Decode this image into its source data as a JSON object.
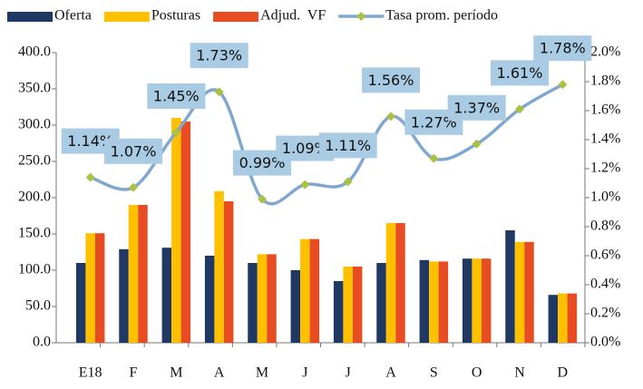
{
  "chart_data": {
    "type": "bar",
    "categories": [
      "E18",
      "F",
      "M",
      "A",
      "M",
      "J",
      "J",
      "A",
      "S",
      "O",
      "N",
      "D"
    ],
    "series": [
      {
        "name": "Oferta",
        "color": "#1f3864",
        "values": [
          110,
          129,
          131,
          120,
          110,
          100,
          85,
          110,
          114,
          116,
          155,
          66
        ]
      },
      {
        "name": "Posturas",
        "color": "#ffc000",
        "values": [
          151,
          190,
          310,
          209,
          122,
          143,
          105,
          165,
          112,
          116,
          139,
          68
        ]
      },
      {
        "name": "Adjud.  VF",
        "color": "#e84c22",
        "values": [
          151,
          190,
          305,
          195,
          122,
          143,
          105,
          165,
          112,
          116,
          139,
          68
        ]
      },
      {
        "name": "Tasa prom. período",
        "color": "#7fa7d0",
        "marker_color": "#a9c23f",
        "type": "line",
        "axis": "y2",
        "values": [
          1.14,
          1.07,
          1.45,
          1.73,
          0.99,
          1.09,
          1.11,
          1.56,
          1.27,
          1.37,
          1.61,
          1.78
        ],
        "value_labels": [
          "1.14%",
          "1.07%",
          "1.45%",
          "1.73%",
          "0.99%",
          "1.09%",
          "1.11%",
          "1.56%",
          "1.27%",
          "1.37%",
          "1.61%",
          "1.78%"
        ]
      }
    ],
    "ylim": [
      0,
      400
    ],
    "yticks": [
      {
        "value": 0,
        "label": "0.0"
      },
      {
        "value": 50,
        "label": "50.0"
      },
      {
        "value": 100,
        "label": "100.0"
      },
      {
        "value": 150,
        "label": "150.0"
      },
      {
        "value": 200,
        "label": "200.0"
      },
      {
        "value": 250,
        "label": "250.0"
      },
      {
        "value": 300,
        "label": "300.0"
      },
      {
        "value": 350,
        "label": "350.0"
      },
      {
        "value": 400,
        "label": "400.0"
      }
    ],
    "y2lim": [
      0,
      2
    ],
    "y2ticks": [
      {
        "value": 0,
        "label": "0.0%"
      },
      {
        "value": 0.2,
        "label": "0.2%"
      },
      {
        "value": 0.4,
        "label": "0.4%"
      },
      {
        "value": 0.6,
        "label": "0.6%"
      },
      {
        "value": 0.8,
        "label": "0.8%"
      },
      {
        "value": 1.0,
        "label": "1.0%"
      },
      {
        "value": 1.2,
        "label": "1.2%"
      },
      {
        "value": 1.4,
        "label": "1.4%"
      },
      {
        "value": 1.6,
        "label": "1.6%"
      },
      {
        "value": 1.8,
        "label": "1.8%"
      },
      {
        "value": 2.0,
        "label": "2.0%"
      }
    ],
    "legend": "top"
  }
}
